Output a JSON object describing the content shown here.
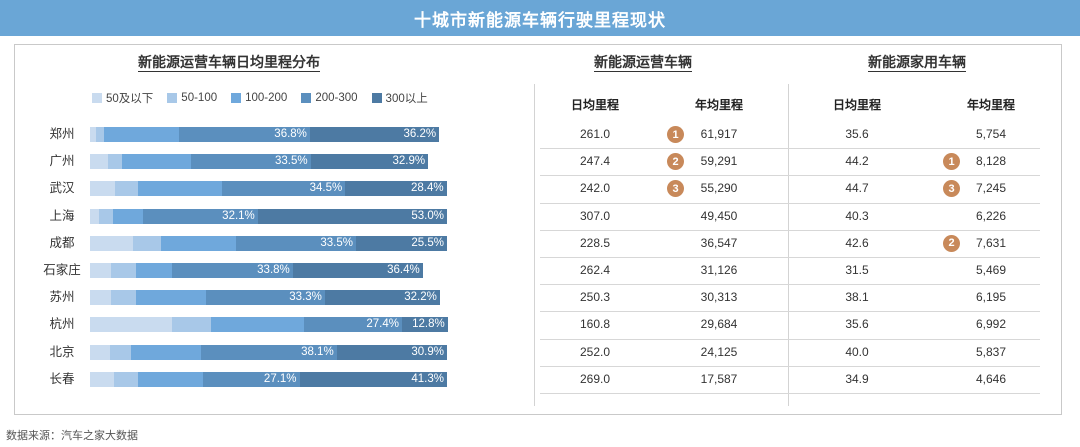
{
  "banner": {
    "title": "十城市新能源车辆行驶里程现状"
  },
  "sections": {
    "distribution_title": "新能源运营车辆日均里程分布",
    "operating_title": "新能源运营车辆",
    "household_title": "新能源家用车辆"
  },
  "columns": {
    "op_daily": "日均里程",
    "op_annual": "年均里程",
    "hh_daily": "日均里程",
    "hh_annual": "年均里程"
  },
  "source": "数据来源：汽车之家大数据",
  "colors": {
    "seg1": "#c9dbef",
    "seg2": "#a8c8e8",
    "seg3": "#6fa8dc",
    "seg4": "#5b8fbe",
    "seg5": "#4d7aa3",
    "rank_badge": "#c8895a",
    "banner": "#6aa6d6"
  },
  "chart_data": {
    "type": "bar",
    "orientation": "horizontal-stacked-100",
    "title": "新能源运营车辆日均里程分布",
    "legend_position": "top",
    "series": [
      {
        "name": "50及以下",
        "values": [
          1.8,
          5.0,
          7.0,
          2.5,
          12.0,
          6.0,
          6.0,
          23.0,
          5.5,
          6.7
        ]
      },
      {
        "name": "50-100",
        "values": [
          2.0,
          4.0,
          6.5,
          4.0,
          8.0,
          7.0,
          7.0,
          11.0,
          6.0,
          6.7
        ]
      },
      {
        "name": "100-200",
        "values": [
          21.0,
          19.3,
          23.5,
          8.4,
          21.0,
          10.0,
          19.5,
          26.0,
          19.5,
          18.2
        ]
      },
      {
        "name": "200-300",
        "values": [
          36.8,
          33.5,
          34.5,
          32.1,
          33.5,
          33.8,
          33.3,
          27.4,
          38.1,
          27.1
        ]
      },
      {
        "name": "300以上",
        "values": [
          36.2,
          32.9,
          28.4,
          53.0,
          25.5,
          36.4,
          32.2,
          12.8,
          30.9,
          41.3
        ]
      }
    ],
    "labeled_series": [
      "200-300",
      "300以上"
    ]
  },
  "rows": [
    {
      "city": "郑州",
      "label_200_300": "36.8%",
      "label_300": "36.2%",
      "op_daily": "261.0",
      "op_annual": "61,917",
      "op_rank": "1",
      "hh_daily": "35.6",
      "hh_annual": "5,754",
      "hh_rank": ""
    },
    {
      "city": "广州",
      "label_200_300": "33.5%",
      "label_300": "32.9%",
      "op_daily": "247.4",
      "op_annual": "59,291",
      "op_rank": "2",
      "hh_daily": "44.2",
      "hh_annual": "8,128",
      "hh_rank": "1"
    },
    {
      "city": "武汉",
      "label_200_300": "34.5%",
      "label_300": "28.4%",
      "op_daily": "242.0",
      "op_annual": "55,290",
      "op_rank": "3",
      "hh_daily": "44.7",
      "hh_annual": "7,245",
      "hh_rank": "3"
    },
    {
      "city": "上海",
      "label_200_300": "32.1%",
      "label_300": "53.0%",
      "op_daily": "307.0",
      "op_annual": "49,450",
      "op_rank": "",
      "hh_daily": "40.3",
      "hh_annual": "6,226",
      "hh_rank": ""
    },
    {
      "city": "成都",
      "label_200_300": "33.5%",
      "label_300": "25.5%",
      "op_daily": "228.5",
      "op_annual": "36,547",
      "op_rank": "",
      "hh_daily": "42.6",
      "hh_annual": "7,631",
      "hh_rank": "2"
    },
    {
      "city": "石家庄",
      "label_200_300": "33.8%",
      "label_300": "36.4%",
      "op_daily": "262.4",
      "op_annual": "31,126",
      "op_rank": "",
      "hh_daily": "31.5",
      "hh_annual": "5,469",
      "hh_rank": ""
    },
    {
      "city": "苏州",
      "label_200_300": "33.3%",
      "label_300": "32.2%",
      "op_daily": "250.3",
      "op_annual": "30,313",
      "op_rank": "",
      "hh_daily": "38.1",
      "hh_annual": "6,195",
      "hh_rank": ""
    },
    {
      "city": "杭州",
      "label_200_300": "27.4%",
      "label_300": "12.8%",
      "op_daily": "160.8",
      "op_annual": "29,684",
      "op_rank": "",
      "hh_daily": "35.6",
      "hh_annual": "6,992",
      "hh_rank": ""
    },
    {
      "city": "北京",
      "label_200_300": "38.1%",
      "label_300": "30.9%",
      "op_daily": "252.0",
      "op_annual": "24,125",
      "op_rank": "",
      "hh_daily": "40.0",
      "hh_annual": "5,837",
      "hh_rank": ""
    },
    {
      "city": "长春",
      "label_200_300": "27.1%",
      "label_300": "41.3%",
      "op_daily": "269.0",
      "op_annual": "17,587",
      "op_rank": "",
      "hh_daily": "34.9",
      "hh_annual": "4,646",
      "hh_rank": ""
    }
  ]
}
